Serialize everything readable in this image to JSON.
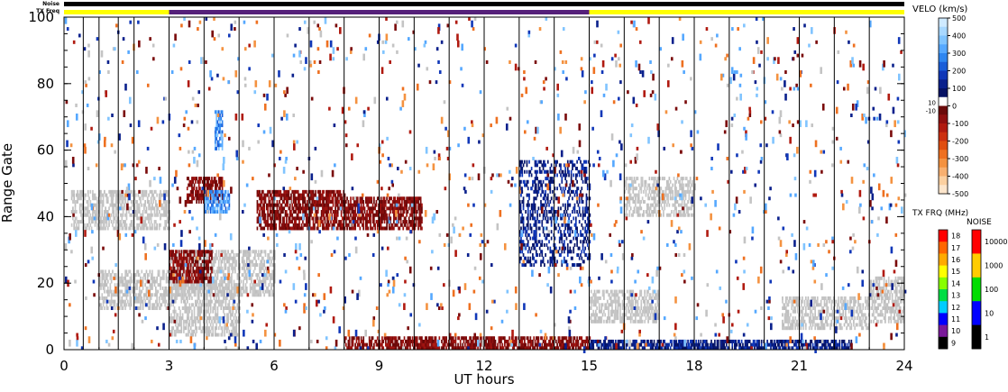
{
  "header": {
    "noise_label": "Noise",
    "txfreq_label": "TX Freq"
  },
  "chart_data": {
    "type": "heatmap",
    "xlabel": "UT hours",
    "ylabel": "Range Gate",
    "xlim": [
      0,
      24
    ],
    "ylim": [
      0,
      100
    ],
    "x_ticks": [
      "0",
      "3",
      "6",
      "9",
      "12",
      "15",
      "18",
      "21",
      "24"
    ],
    "y_ticks": [
      "0",
      "20",
      "40",
      "60",
      "80",
      "100"
    ],
    "scan_boundaries_ut": [
      0.55,
      1.0,
      1.55,
      2.0,
      3.0,
      4.0,
      5.0,
      6.0,
      7.0,
      8.0,
      9.0,
      10.0,
      11.0,
      12.0,
      13.0,
      14.0,
      15.0,
      16.0,
      17.0,
      18.0,
      19.0,
      20.0,
      21.0,
      22.0,
      23.0
    ],
    "tx_freq_bar": [
      {
        "start": 0,
        "end": 3,
        "color": "#ffff00"
      },
      {
        "start": 3,
        "end": 15,
        "color": "#55207a"
      },
      {
        "start": 15,
        "end": 24,
        "color": "#ffff00"
      }
    ],
    "noise_bar": {
      "start": 0,
      "end": 24,
      "color": "#000000"
    },
    "patches": [
      {
        "kind": "gs",
        "ut": [
          0.2,
          3.0
        ],
        "gate": [
          36,
          48
        ]
      },
      {
        "kind": "gs",
        "ut": [
          1.0,
          3.0
        ],
        "gate": [
          12,
          24
        ]
      },
      {
        "kind": "gs",
        "ut": [
          3.0,
          6.0
        ],
        "gate": [
          16,
          30
        ]
      },
      {
        "kind": "gs",
        "ut": [
          3.0,
          5.0
        ],
        "gate": [
          4,
          20
        ]
      },
      {
        "kind": "gs",
        "ut": [
          15.0,
          17.0
        ],
        "gate": [
          8,
          18
        ]
      },
      {
        "kind": "gs",
        "ut": [
          16.0,
          18.0
        ],
        "gate": [
          40,
          52
        ]
      },
      {
        "kind": "gs",
        "ut": [
          20.5,
          23.0
        ],
        "gate": [
          6,
          16
        ]
      },
      {
        "kind": "gs",
        "ut": [
          23.0,
          24.0
        ],
        "gate": [
          8,
          22
        ]
      },
      {
        "kind": "away",
        "ut": [
          8.0,
          10.2
        ],
        "gate": [
          36,
          46
        ]
      },
      {
        "kind": "away",
        "ut": [
          5.5,
          8.0
        ],
        "gate": [
          36,
          48
        ]
      },
      {
        "kind": "away",
        "ut": [
          3.0,
          4.2
        ],
        "gate": [
          20,
          30
        ]
      },
      {
        "kind": "away",
        "ut": [
          3.5,
          4.5
        ],
        "gate": [
          44,
          52
        ]
      },
      {
        "kind": "away",
        "ut": [
          8.0,
          15.0
        ],
        "gate": [
          0,
          4
        ]
      },
      {
        "kind": "toward",
        "ut": [
          15.0,
          22.5
        ],
        "gate": [
          0,
          3
        ]
      },
      {
        "kind": "toward",
        "ut": [
          13.0,
          15.0
        ],
        "gate": [
          25,
          57
        ]
      },
      {
        "kind": "toward_strong",
        "ut": [
          4.0,
          4.7
        ],
        "gate": [
          41,
          48
        ]
      },
      {
        "kind": "toward_strong",
        "ut": [
          4.3,
          4.5
        ],
        "gate": [
          60,
          72
        ]
      }
    ]
  },
  "velocity_scale": {
    "title": "VELO (km/s)",
    "labels": [
      "500",
      "400",
      "300",
      "200",
      "100",
      "0",
      "-100",
      "-200",
      "-300",
      "-400",
      "-500"
    ],
    "small_labels": [
      "10",
      "-10"
    ],
    "colors": [
      "#cfeaff",
      "#a8d8ff",
      "#80c4ff",
      "#55a8ff",
      "#2e86f0",
      "#1a5ed8",
      "#1037b8",
      "#0a208c",
      "#061264",
      "#ffffff",
      "#6a0a0a",
      "#8f1010",
      "#b01a10",
      "#cc3010",
      "#e04e10",
      "#ee7020",
      "#f49240",
      "#f8b070",
      "#fcd0a0",
      "#fde6cc"
    ]
  },
  "txfreq_scale": {
    "title": "TX FRQ (MHz)",
    "labels": [
      "18",
      "17",
      "16",
      "15",
      "14",
      "13",
      "12",
      "11",
      "10",
      "9"
    ],
    "colors": [
      "#ff0000",
      "#ff6600",
      "#ffaa00",
      "#ffff00",
      "#88ff00",
      "#00dd44",
      "#00ccff",
      "#0000ff",
      "#7a1a9a",
      "#000000"
    ]
  },
  "noise_scale": {
    "title": "NOISE",
    "labels": [
      "10000",
      "1000",
      "100",
      "10",
      "1"
    ],
    "colors": [
      "#ff0000",
      "#ffcc00",
      "#00dd00",
      "#0000ff",
      "#000000"
    ]
  }
}
